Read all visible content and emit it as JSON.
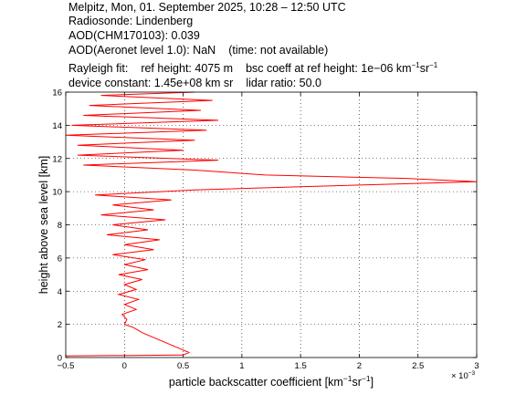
{
  "header": {
    "line1": "Melpitz, Mon, 01. September 2025, 10:28 – 12:50 UTC",
    "line2": "Radiosonde: Lindenberg",
    "line3": "AOD(CHM170103): 0.039",
    "line4_a": "AOD(Aeronet level 1.0): NaN",
    "line4_b": "(time: not available)",
    "line5_a": "Rayleigh fit:",
    "line5_b": "ref height: 4075 m",
    "line5_c": "bsc coeff at ref height: 1e−06 km",
    "line5_sup1": "−1",
    "line5_mid": "sr",
    "line5_sup2": "−1",
    "line6_a": "device constant: 1.45e+08 km sr",
    "line6_b": "lidar ratio: 50.0"
  },
  "chart_data": {
    "type": "line",
    "title": "",
    "xlabel_main": "particle backscatter coefficient [km",
    "xlabel_sup1": "−1",
    "xlabel_mid": "sr",
    "xlabel_sup2": "−1",
    "xlabel_end": "]",
    "ylabel": "height above sea level [km]",
    "x_multiplier": "× 10",
    "x_multiplier_exp": "−3",
    "xlim": [
      -0.5,
      3.0
    ],
    "ylim": [
      0,
      16
    ],
    "xticks": [
      "−0.5",
      "0",
      "0.5",
      "1",
      "1.5",
      "2",
      "2.5",
      "3"
    ],
    "xtick_values": [
      -0.5,
      0,
      0.5,
      1,
      1.5,
      2,
      2.5,
      3
    ],
    "yticks": [
      "0",
      "2",
      "4",
      "6",
      "8",
      "10",
      "12",
      "14",
      "16"
    ],
    "ytick_values": [
      0,
      2,
      4,
      6,
      8,
      10,
      12,
      14,
      16
    ],
    "grid": true,
    "series": [
      {
        "color": "#ff0000",
        "points": [
          [
            -0.5,
            0.1
          ],
          [
            0.5,
            0.15
          ],
          [
            0.55,
            0.3
          ],
          [
            0.45,
            0.6
          ],
          [
            0.35,
            0.9
          ],
          [
            0.25,
            1.2
          ],
          [
            0.15,
            1.5
          ],
          [
            0.08,
            1.8
          ],
          [
            0.0,
            2.0
          ],
          [
            0.02,
            2.3
          ],
          [
            -0.02,
            2.6
          ],
          [
            0.1,
            2.9
          ],
          [
            0.0,
            3.2
          ],
          [
            0.12,
            3.5
          ],
          [
            -0.05,
            3.8
          ],
          [
            0.1,
            4.1
          ],
          [
            0.0,
            4.4
          ],
          [
            0.15,
            4.7
          ],
          [
            -0.05,
            5.0
          ],
          [
            0.2,
            5.3
          ],
          [
            0.0,
            5.6
          ],
          [
            0.18,
            5.9
          ],
          [
            -0.1,
            6.2
          ],
          [
            0.25,
            6.5
          ],
          [
            0.0,
            6.8
          ],
          [
            0.3,
            7.1
          ],
          [
            -0.15,
            7.4
          ],
          [
            0.2,
            7.7
          ],
          [
            -0.1,
            8.0
          ],
          [
            0.35,
            8.3
          ],
          [
            -0.2,
            8.6
          ],
          [
            0.25,
            8.9
          ],
          [
            -0.1,
            9.2
          ],
          [
            0.4,
            9.5
          ],
          [
            -0.25,
            9.8
          ],
          [
            0.6,
            10.1
          ],
          [
            1.5,
            10.3
          ],
          [
            3.0,
            10.6
          ],
          [
            2.4,
            10.8
          ],
          [
            1.2,
            11.0
          ],
          [
            0.6,
            11.3
          ],
          [
            -0.35,
            11.6
          ],
          [
            0.8,
            11.9
          ],
          [
            -0.4,
            12.2
          ],
          [
            0.5,
            12.5
          ],
          [
            -0.4,
            12.8
          ],
          [
            0.6,
            13.1
          ],
          [
            -0.5,
            13.4
          ],
          [
            0.7,
            13.7
          ],
          [
            -0.45,
            14.0
          ],
          [
            0.8,
            14.3
          ],
          [
            -0.35,
            14.6
          ],
          [
            0.65,
            14.9
          ],
          [
            -0.3,
            15.2
          ],
          [
            0.75,
            15.5
          ],
          [
            -0.2,
            15.8
          ],
          [
            0.6,
            16.0
          ]
        ]
      }
    ]
  }
}
